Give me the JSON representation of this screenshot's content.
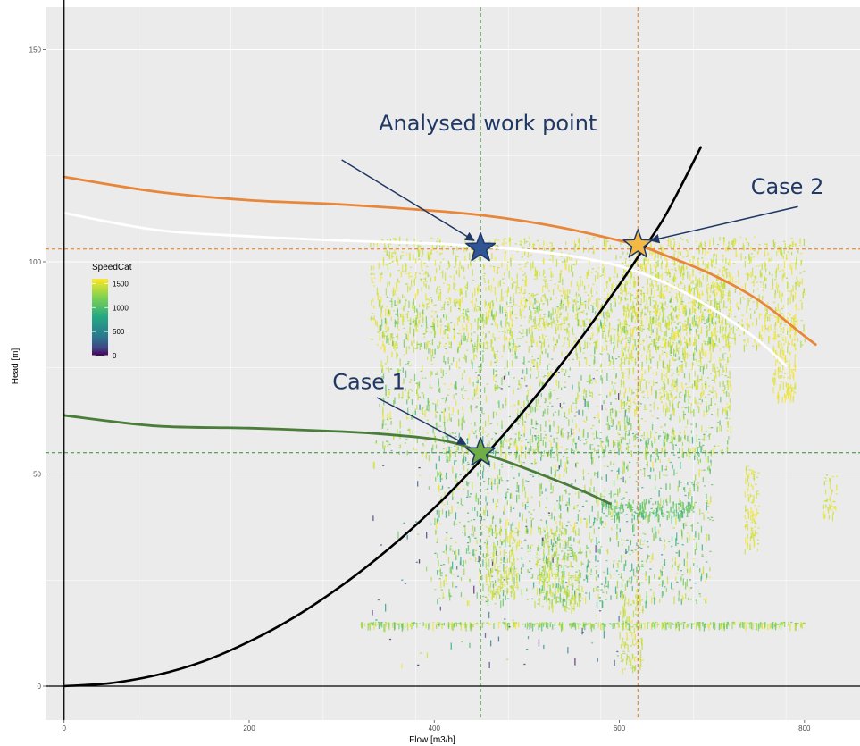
{
  "chart_data": {
    "type": "scatter",
    "xlabel": "Flow [m3/h]",
    "ylabel": "Head [m]",
    "xlim": [
      -20,
      860
    ],
    "ylim": [
      -8,
      160
    ],
    "x_ticks": [
      0,
      200,
      400,
      600,
      800
    ],
    "y_ticks": [
      0,
      50,
      100,
      150
    ],
    "grid": true,
    "legend": {
      "title": "SpeedCat",
      "placement": "left",
      "entries": [
        1500,
        1000,
        500,
        0
      ]
    },
    "reference_lines": [
      {
        "axis": "x",
        "value": 450,
        "color": "#3a8a3a",
        "style": "dashed"
      },
      {
        "axis": "x",
        "value": 620,
        "color": "#e07b20",
        "style": "dashed"
      },
      {
        "axis": "y",
        "value": 103,
        "color": "#e07b20",
        "style": "dashed"
      },
      {
        "axis": "y",
        "value": 55,
        "color": "#3a8a3a",
        "style": "dashed"
      }
    ],
    "series": [
      {
        "key": "orange_curve",
        "color": "#e8873a",
        "x": [
          0,
          100,
          200,
          300,
          400,
          450,
          500,
          550,
          600,
          620,
          650,
          700,
          750,
          800,
          812
        ],
        "y": [
          120,
          116.5,
          114.5,
          113.5,
          112,
          111,
          109.5,
          107.5,
          105,
          104,
          101.5,
          97,
          91,
          82.5,
          80.5
        ]
      },
      {
        "key": "white_curve",
        "color": "#ffffff",
        "x": [
          0,
          100,
          200,
          300,
          400,
          450,
          500,
          550,
          600,
          650,
          700,
          750,
          780
        ],
        "y": [
          111.5,
          107.5,
          106,
          105,
          104.3,
          103.6,
          102.7,
          101.3,
          99,
          95,
          89,
          81.5,
          75.5
        ]
      },
      {
        "key": "green_curve",
        "color": "#4a7c3a",
        "x": [
          0,
          100,
          200,
          300,
          350,
          400,
          430,
          450,
          480,
          520,
          560,
          590
        ],
        "y": [
          63.8,
          61.3,
          60.8,
          60,
          59.3,
          58.2,
          56.8,
          55,
          52.8,
          49.5,
          46,
          43
        ]
      },
      {
        "key": "system_curve",
        "color": "#000000",
        "x": [
          0,
          50,
          100,
          150,
          200,
          250,
          300,
          350,
          400,
          450,
          500,
          550,
          600,
          620,
          650,
          688
        ],
        "y": [
          0,
          0.7,
          2.6,
          5.8,
          10.5,
          16.4,
          23.7,
          32.2,
          42,
          53.2,
          65.7,
          79.5,
          94.6,
          101.1,
          111,
          127
        ]
      }
    ],
    "markers": [
      {
        "x": 450,
        "y": 103.2,
        "shape": "star",
        "color": "#2f5597"
      },
      {
        "x": 620,
        "y": 104,
        "shape": "star",
        "color": "#f4b942"
      },
      {
        "x": 450,
        "y": 55,
        "shape": "star",
        "color": "#70ad47"
      }
    ],
    "annotations": [
      {
        "text": "Analysed work point",
        "x": 340,
        "y": 131,
        "arrow_from": [
          300,
          124
        ],
        "arrow_to": [
          443,
          105
        ]
      },
      {
        "text": "Case 2",
        "x": 742,
        "y": 116,
        "arrow_from": [
          793,
          113
        ],
        "arrow_to": [
          634,
          105
        ]
      },
      {
        "text": "Case 1",
        "x": 290,
        "y": 70,
        "arrow_from": [
          338,
          68
        ],
        "arrow_to": [
          434,
          57
        ]
      }
    ],
    "scatter_regions": [
      {
        "x": [
          330,
          800
        ],
        "y": [
          80,
          106
        ],
        "n": 1800,
        "speed": [
          1380,
          1600
        ]
      },
      {
        "x": [
          340,
          720
        ],
        "y": [
          55,
          92
        ],
        "n": 1500,
        "speed": [
          1100,
          1600
        ]
      },
      {
        "x": [
          400,
          700
        ],
        "y": [
          20,
          60
        ],
        "n": 1300,
        "speed": [
          900,
          1600
        ]
      },
      {
        "x": [
          600,
          720
        ],
        "y": [
          65,
          100
        ],
        "n": 600,
        "speed": [
          1400,
          1600
        ]
      },
      {
        "x": [
          455,
          490
        ],
        "y": [
          22,
          38
        ],
        "n": 150,
        "speed": [
          1400,
          1550
        ]
      },
      {
        "x": [
          510,
          560
        ],
        "y": [
          18,
          38
        ],
        "n": 250,
        "speed": [
          1300,
          1550
        ]
      },
      {
        "x": [
          600,
          625
        ],
        "y": [
          4,
          22
        ],
        "n": 120,
        "speed": [
          1400,
          1550
        ]
      },
      {
        "x": [
          735,
          750
        ],
        "y": [
          32,
          52
        ],
        "n": 90,
        "speed": [
          1450,
          1600
        ]
      },
      {
        "x": [
          765,
          790
        ],
        "y": [
          68,
          88
        ],
        "n": 140,
        "speed": [
          1500,
          1600
        ]
      },
      {
        "x": [
          820,
          835
        ],
        "y": [
          40,
          50
        ],
        "n": 40,
        "speed": [
          1400,
          1600
        ]
      },
      {
        "x": [
          320,
          800
        ],
        "y": [
          14.6,
          15.2
        ],
        "n": 420,
        "speed": [
          1100,
          1600
        ]
      },
      {
        "x": [
          330,
          610
        ],
        "y": [
          5,
          75
        ],
        "n": 160,
        "speed": [
          0,
          1600
        ]
      },
      {
        "x": [
          580,
          680
        ],
        "y": [
          40,
          44
        ],
        "n": 160,
        "speed": [
          1000,
          1300
        ]
      }
    ]
  }
}
